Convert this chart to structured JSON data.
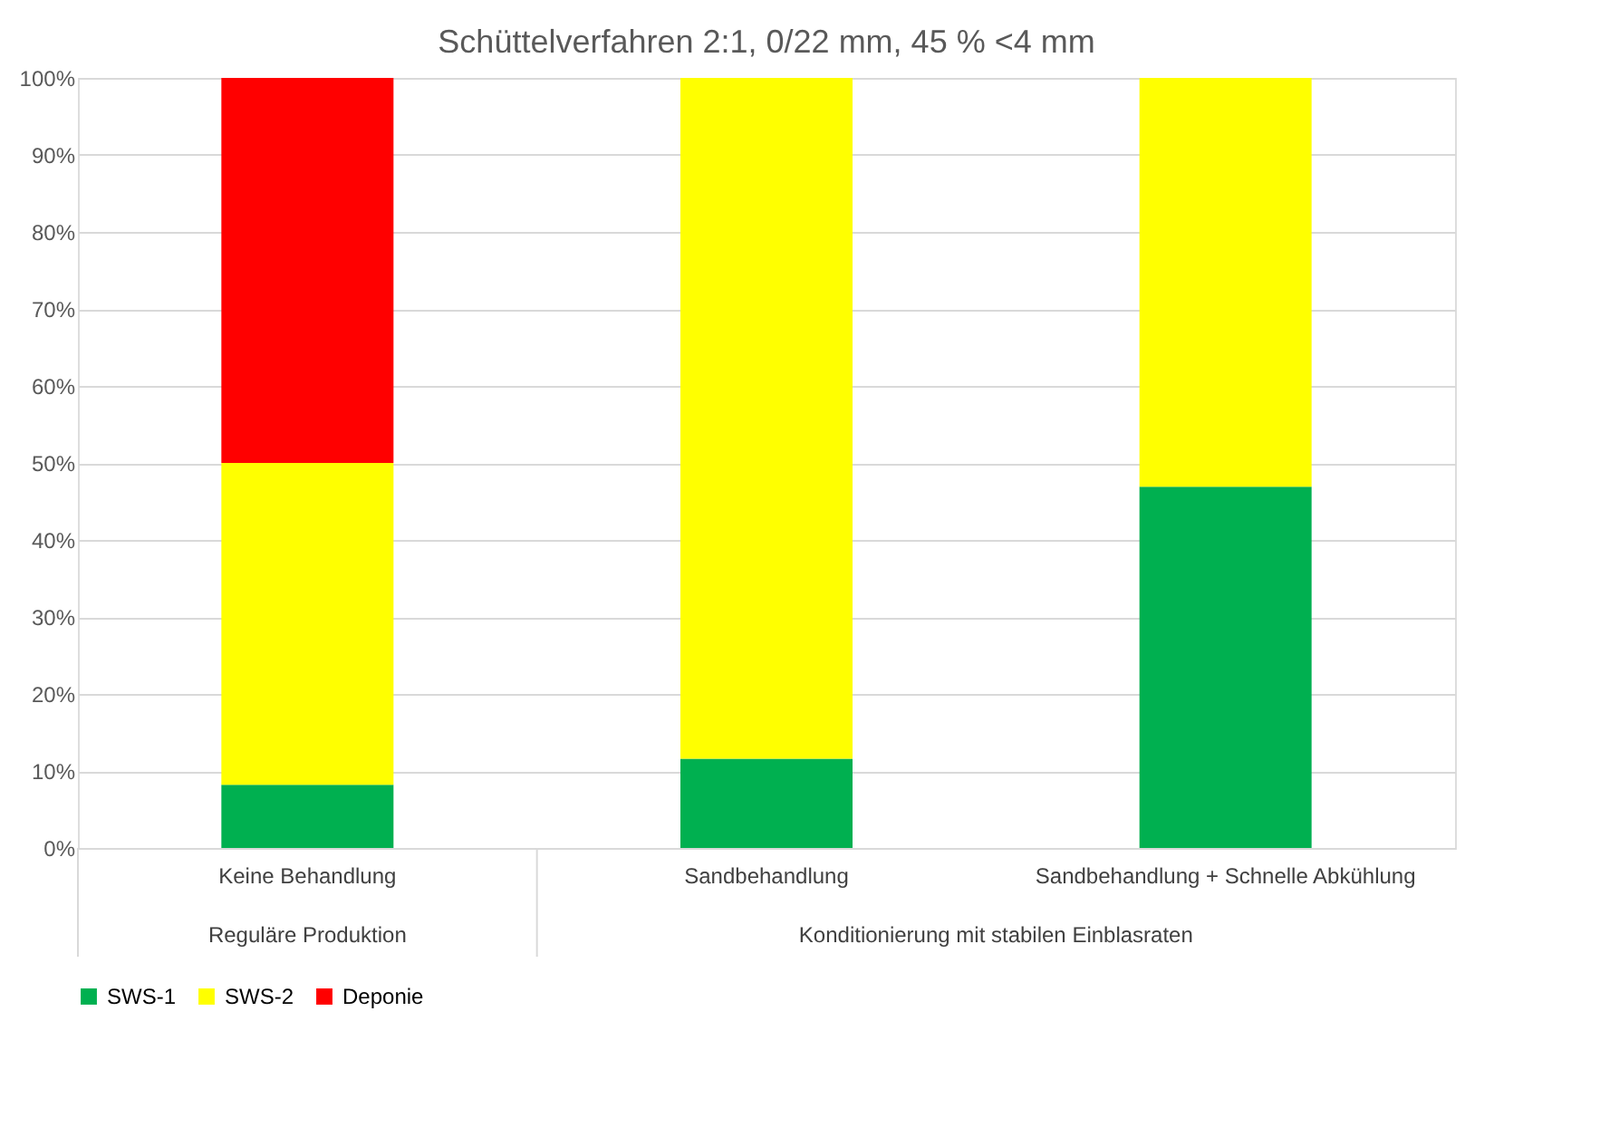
{
  "chart_data": {
    "type": "bar",
    "stacked": true,
    "title": "Schüttelverfahren 2:1, 0/22 mm, 45 % <4 mm",
    "categories": [
      "Keine Behandlung",
      "Sandbehandlung",
      "Sandbehandlung + Schnelle Abkühlung"
    ],
    "series": [
      {
        "name": "SWS-1",
        "color": "#00b050",
        "values": [
          8.2,
          11.6,
          46.9
        ]
      },
      {
        "name": "SWS-2",
        "color": "#ffff00",
        "values": [
          41.8,
          88.4,
          53.1
        ]
      },
      {
        "name": "Deponie",
        "color": "#ff0000",
        "values": [
          50,
          null,
          null
        ]
      }
    ],
    "ylim": [
      0,
      100
    ],
    "yticks": [
      {
        "value": 0,
        "label": "0%"
      },
      {
        "value": 10,
        "label": "10%"
      },
      {
        "value": 20,
        "label": "20%"
      },
      {
        "value": 30,
        "label": "30%"
      },
      {
        "value": 40,
        "label": "40%"
      },
      {
        "value": 50,
        "label": "50%"
      },
      {
        "value": 60,
        "label": "60%"
      },
      {
        "value": 70,
        "label": "70%"
      },
      {
        "value": 80,
        "label": "80%"
      },
      {
        "value": 90,
        "label": "90%"
      },
      {
        "value": 100,
        "label": "100%"
      }
    ],
    "grid": "y",
    "legend": "bottom",
    "annotations": [
      "Reguläre Produktion",
      "Konditionierung mit stabilen Einblasraten"
    ]
  }
}
